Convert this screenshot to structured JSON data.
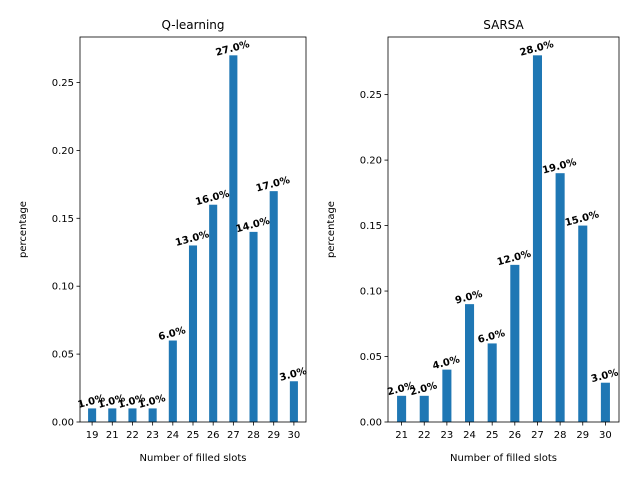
{
  "colors": {
    "bar": "#1f77b4",
    "axis": "#000000",
    "background": "#ffffff"
  },
  "chart_data": [
    {
      "type": "bar",
      "title": "Q-learning",
      "xlabel": "Number of filled slots",
      "ylabel": "percentage",
      "categories": [
        "19",
        "21",
        "22",
        "23",
        "24",
        "25",
        "26",
        "27",
        "28",
        "29",
        "30"
      ],
      "values": [
        0.01,
        0.01,
        0.01,
        0.01,
        0.06,
        0.13,
        0.16,
        0.27,
        0.14,
        0.17,
        0.03
      ],
      "value_labels": [
        "1.0%",
        "1.0%",
        "1.0%",
        "1.0%",
        "6.0%",
        "13.0%",
        "16.0%",
        "27.0%",
        "14.0%",
        "17.0%",
        "3.0%"
      ],
      "ylim": [
        0,
        0.2835
      ],
      "yticks": [
        0.0,
        0.05,
        0.1,
        0.15,
        0.2,
        0.25
      ],
      "ytick_labels": [
        "0.00",
        "0.05",
        "0.10",
        "0.15",
        "0.20",
        "0.25"
      ],
      "grid": false,
      "legend": "none"
    },
    {
      "type": "bar",
      "title": "SARSA",
      "xlabel": "Number of filled slots",
      "ylabel": "percentage",
      "categories": [
        "21",
        "22",
        "23",
        "24",
        "25",
        "26",
        "27",
        "28",
        "29",
        "30"
      ],
      "values": [
        0.02,
        0.02,
        0.04,
        0.09,
        0.06,
        0.12,
        0.28,
        0.19,
        0.15,
        0.03
      ],
      "value_labels": [
        "2.0%",
        "2.0%",
        "4.0%",
        "9.0%",
        "6.0%",
        "12.0%",
        "28.0%",
        "19.0%",
        "15.0%",
        "3.0%"
      ],
      "ylim": [
        0,
        0.294
      ],
      "yticks": [
        0.0,
        0.05,
        0.1,
        0.15,
        0.2,
        0.25
      ],
      "ytick_labels": [
        "0.00",
        "0.05",
        "0.10",
        "0.15",
        "0.20",
        "0.25"
      ],
      "grid": false,
      "legend": "none"
    }
  ]
}
